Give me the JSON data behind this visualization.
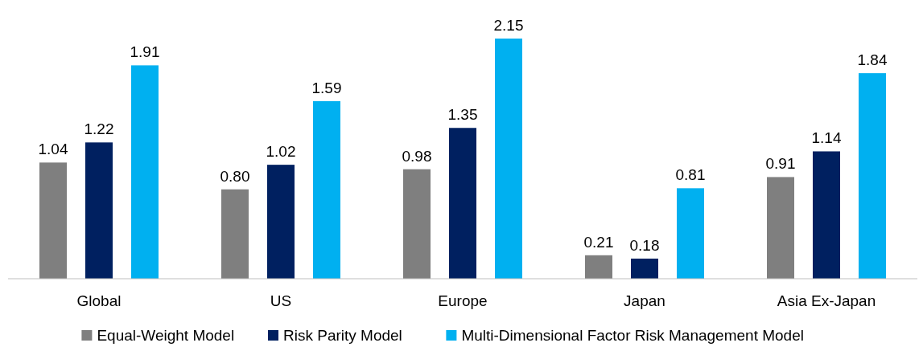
{
  "chart_data": {
    "type": "bar",
    "categories": [
      "Global",
      "US",
      "Europe",
      "Japan",
      "Asia Ex-Japan"
    ],
    "series": [
      {
        "name": "Equal-Weight Model",
        "color": "#7f7f7f",
        "values": [
          1.04,
          0.8,
          0.98,
          0.21,
          0.91
        ],
        "value_labels": [
          "1.04",
          "0.80",
          "0.98",
          "0.21",
          "0.91"
        ]
      },
      {
        "name": "Risk Parity Model",
        "color": "#002060",
        "values": [
          1.22,
          1.02,
          1.35,
          0.18,
          1.14
        ],
        "value_labels": [
          "1.22",
          "1.02",
          "1.35",
          "0.18",
          "1.14"
        ]
      },
      {
        "name": "Multi-Dimensional Factor Risk Management Model",
        "color": "#00b0f0",
        "values": [
          1.91,
          1.59,
          2.15,
          0.81,
          1.84
        ],
        "value_labels": [
          "1.91",
          "1.59",
          "2.15",
          "0.81",
          "1.84"
        ]
      }
    ],
    "legend": "bottom"
  }
}
